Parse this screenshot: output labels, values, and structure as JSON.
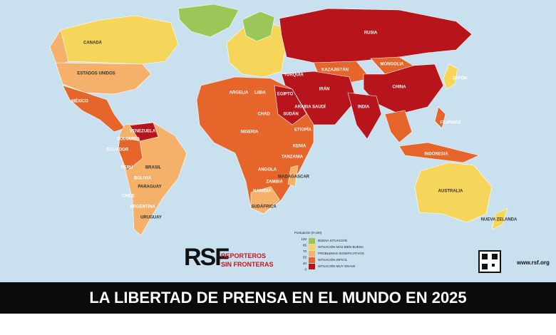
{
  "map": {
    "labels": [
      "RUSIA",
      "CANADÁ",
      "ESTADOS UNIDOS",
      "MÉXICO",
      "VENEZUELA",
      "COLOMBIA",
      "ECUADOR",
      "PERÚ",
      "BRASIL",
      "BOLIVIA",
      "PARAGUAY",
      "CHILE",
      "ARGENTINA",
      "URUGUAY",
      "ARGELIA",
      "LIBIA",
      "EGIPTO",
      "SUDÁN",
      "CHAD",
      "NIGERIA",
      "ETIOPÍA",
      "KENIA",
      "TANZANIA",
      "ANGOLA",
      "ZAMBIA",
      "NAMIBIA",
      "SUDÁFRICA",
      "MADAGASCAR",
      "TURQUÍA",
      "IRÁN",
      "ARABIA SAUDÍ",
      "KAZAJISTÁN",
      "MONGOLIA",
      "CHINA",
      "INDIA",
      "JAPÓN",
      "FILIPINAS",
      "INDONESIA",
      "AUSTRALIA",
      "NUEVA ZELANDA"
    ]
  },
  "legend": {
    "title": "Puntuación (0-100)",
    "scale": [
      "100",
      "85",
      "70",
      "55",
      "40",
      "0"
    ],
    "items": [
      {
        "label": "BUENA SITUACIÓN",
        "color": "#9cc658"
      },
      {
        "label": "SITUACIÓN MÁS BIEN BUENA",
        "color": "#f6d65a"
      },
      {
        "label": "PROBLEMAS SIGNIFICATIVOS",
        "color": "#f5b06a"
      },
      {
        "label": "SITUACIÓN DIFÍCIL",
        "color": "#e5652a"
      },
      {
        "label": "SITUACIÓN MUY GRAVE",
        "color": "#b8141c"
      }
    ]
  },
  "logo": {
    "mark": "RSF",
    "line1": "REPORTEROS",
    "line2": "SIN FRONTERAS"
  },
  "url": "www.rsf.org",
  "banner": "LA LIBERTAD DE PRENSA EN EL MUNDO EN 2025"
}
